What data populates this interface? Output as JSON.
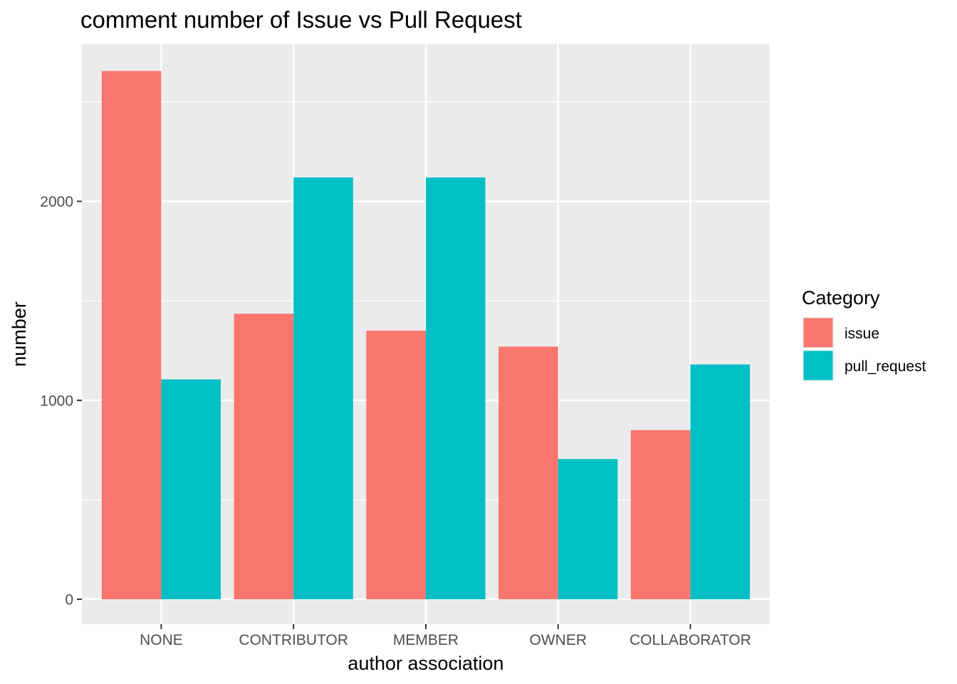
{
  "chart_data": {
    "type": "bar",
    "title": "comment number of Issue vs Pull Request",
    "xlabel": "author association",
    "ylabel": "number",
    "categories": [
      "NONE",
      "CONTRIBUTOR",
      "MEMBER",
      "OWNER",
      "COLLABORATOR"
    ],
    "series": [
      {
        "name": "issue",
        "color": "#F8766D",
        "values": [
          2655,
          1435,
          1350,
          1270,
          850
        ]
      },
      {
        "name": "pull_request",
        "color": "#00BFC4",
        "values": [
          1105,
          2120,
          2120,
          705,
          1180
        ]
      }
    ],
    "ylim": [
      -125,
      2790
    ],
    "yticks": [
      0,
      1000,
      2000
    ],
    "grid": true,
    "legend": {
      "title": "Category",
      "position": "right"
    }
  }
}
